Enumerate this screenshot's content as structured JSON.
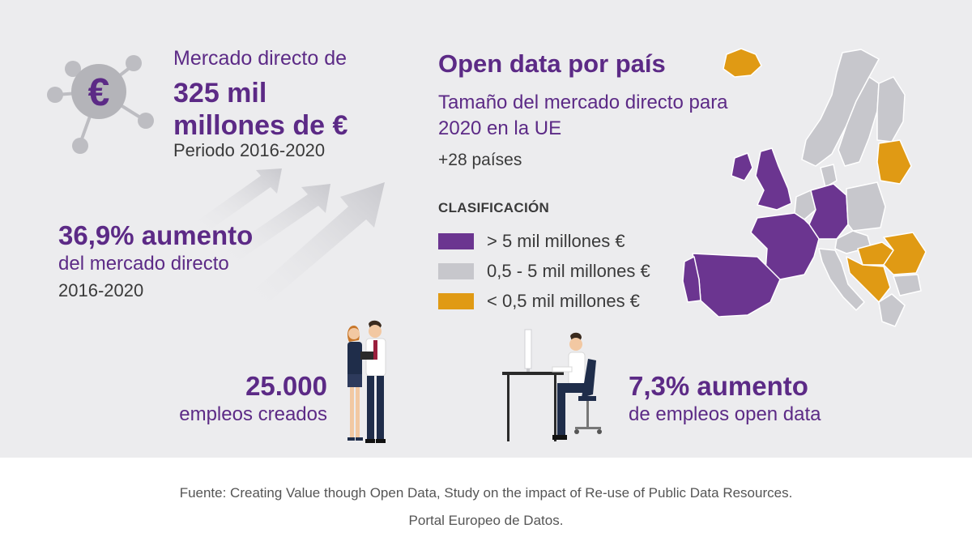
{
  "market": {
    "line1": "Mercado directo de",
    "amount_line1": "325 mil",
    "amount_line2": "millones de €",
    "period": "Periodo 2016-2020"
  },
  "increase": {
    "title": "36,9% aumento",
    "subtitle": "del mercado directo",
    "years": "2016-2020"
  },
  "open_data": {
    "title": "Open data por país",
    "subtitle": "Tamaño del mercado directo para 2020 en la UE",
    "countries": "+28 países"
  },
  "legend": {
    "title": "CLASIFICACIÓN",
    "items": [
      {
        "label": "> 5 mil millones €",
        "color": "#6b3590"
      },
      {
        "label": "0,5 - 5 mil millones €",
        "color": "#c7c7cc"
      },
      {
        "label": "< 0,5 mil millones €",
        "color": "#e09a14"
      }
    ]
  },
  "jobs": {
    "number": "25.000",
    "subtitle": "empleos creados"
  },
  "open_data_jobs": {
    "title": "7,3% aumento",
    "subtitle": "de empleos open data"
  },
  "footer": {
    "source_line1": "Fuente: Creating Value though Open Data, Study on the impact of Re-use of Public Data Resources.",
    "source_line2": "Portal Europeo de Datos."
  },
  "colors": {
    "purple_text": "#5c2a86",
    "panel_background": "#ececee"
  },
  "icons": [
    "euro-network-icon",
    "growth-arrows-icon",
    "europe-map",
    "business-people-illustration",
    "desk-worker-illustration"
  ]
}
